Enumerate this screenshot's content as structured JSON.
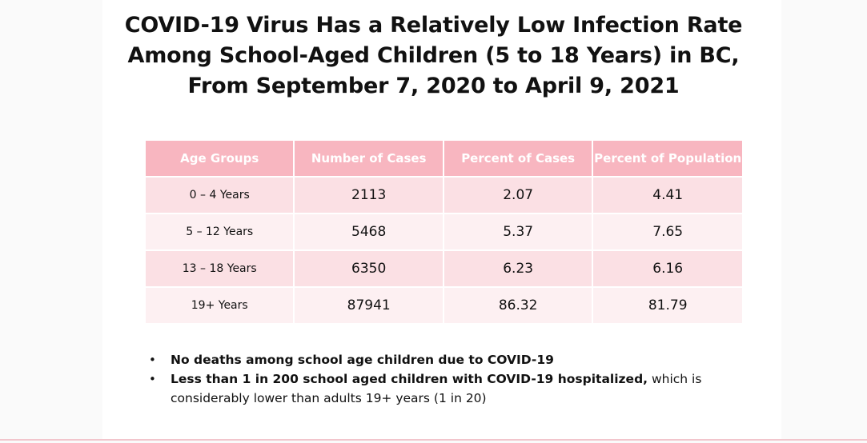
{
  "title": {
    "line1": "COVID-19 Virus Has a Relatively Low Infection Rate",
    "line2": "Among School-Aged Children (5 to 18 Years) in BC,",
    "line3": "From September 7, 2020 to April 9, 2021"
  },
  "table": {
    "headers": [
      "Age Groups",
      "Number of Cases",
      "Percent of Cases",
      "Percent of Population"
    ],
    "rows": [
      [
        "0 – 4 Years",
        "2113",
        "2.07",
        "4.41"
      ],
      [
        "5 – 12 Years",
        "5468",
        "5.37",
        "7.65"
      ],
      [
        "13 – 18 Years",
        "6350",
        "6.23",
        "6.16"
      ],
      [
        "19+ Years",
        "87941",
        "86.32",
        "81.79"
      ]
    ]
  },
  "bullets": {
    "marker": "•",
    "item1_bold": "No deaths among school age children due to COVID-19",
    "item2_bold": "Less than 1 in 200 school aged children with COVID-19 hospitalized,",
    "item2_rest": " which is considerably lower than adults 19+ years (1 in 20)"
  },
  "colors": {
    "header_bg": "#f8b6c0",
    "row_odd_bg": "#fbe0e4",
    "row_even_bg": "#fdf0f2",
    "bottom_rule": "#f2c5cc"
  }
}
